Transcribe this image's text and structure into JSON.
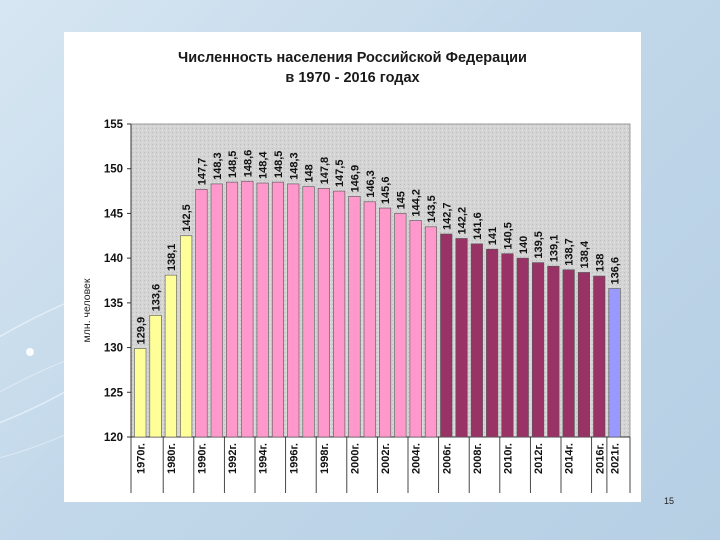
{
  "slide": {
    "page_number": "15"
  },
  "chart_data": {
    "type": "bar",
    "title_line1": "Численность населения Российской Федерации",
    "title_line2": "в 1970 - 2016 годах",
    "ylabel": "млн. человек",
    "ylim": [
      120,
      155
    ],
    "yticks": [
      "120",
      "125",
      "130",
      "135",
      "140",
      "145",
      "150",
      "155"
    ],
    "grid": false,
    "bars": [
      {
        "label": "129,9",
        "value": 129.9,
        "color": "#ffff99"
      },
      {
        "label": "133,6",
        "value": 133.6,
        "color": "#ffff99"
      },
      {
        "label": "138,1",
        "value": 138.1,
        "color": "#ffff99"
      },
      {
        "label": "142,5",
        "value": 142.5,
        "color": "#ffff99"
      },
      {
        "label": "147,7",
        "value": 147.7,
        "color": "#ff99cc"
      },
      {
        "label": "148,3",
        "value": 148.3,
        "color": "#ff99cc"
      },
      {
        "label": "148,5",
        "value": 148.5,
        "color": "#ff99cc"
      },
      {
        "label": "148,6",
        "value": 148.6,
        "color": "#ff99cc"
      },
      {
        "label": "148,4",
        "value": 148.4,
        "color": "#ff99cc"
      },
      {
        "label": "148,5",
        "value": 148.5,
        "color": "#ff99cc"
      },
      {
        "label": "148,3",
        "value": 148.3,
        "color": "#ff99cc"
      },
      {
        "label": "148",
        "value": 148.0,
        "color": "#ff99cc"
      },
      {
        "label": "147,8",
        "value": 147.8,
        "color": "#ff99cc"
      },
      {
        "label": "147,5",
        "value": 147.5,
        "color": "#ff99cc"
      },
      {
        "label": "146,9",
        "value": 146.9,
        "color": "#ff99cc"
      },
      {
        "label": "146,3",
        "value": 146.3,
        "color": "#ff99cc"
      },
      {
        "label": "145,6",
        "value": 145.6,
        "color": "#ff99cc"
      },
      {
        "label": "145",
        "value": 145.0,
        "color": "#ff99cc"
      },
      {
        "label": "144,2",
        "value": 144.2,
        "color": "#ff99cc"
      },
      {
        "label": "143,5",
        "value": 143.5,
        "color": "#ff99cc"
      },
      {
        "label": "142,7",
        "value": 142.7,
        "color": "#993366"
      },
      {
        "label": "142,2",
        "value": 142.2,
        "color": "#993366"
      },
      {
        "label": "141,6",
        "value": 141.6,
        "color": "#993366"
      },
      {
        "label": "141",
        "value": 141.0,
        "color": "#993366"
      },
      {
        "label": "140,5",
        "value": 140.5,
        "color": "#993366"
      },
      {
        "label": "140",
        "value": 140.0,
        "color": "#993366"
      },
      {
        "label": "139,5",
        "value": 139.5,
        "color": "#993366"
      },
      {
        "label": "139,1",
        "value": 139.1,
        "color": "#993366"
      },
      {
        "label": "138,7",
        "value": 138.7,
        "color": "#993366"
      },
      {
        "label": "138,4",
        "value": 138.4,
        "color": "#993366"
      },
      {
        "label": "138",
        "value": 138.0,
        "color": "#993366"
      },
      {
        "label": "136,6",
        "value": 136.6,
        "color": "#9999ff"
      }
    ],
    "category_labels": [
      {
        "text": "1970г.",
        "bar": 0
      },
      {
        "text": "1980г.",
        "bar": 2
      },
      {
        "text": "1990г.",
        "bar": 4
      },
      {
        "text": "1992г.",
        "bar": 6
      },
      {
        "text": "1994г.",
        "bar": 8
      },
      {
        "text": "1996г.",
        "bar": 10
      },
      {
        "text": "1998г.",
        "bar": 12
      },
      {
        "text": "2000г.",
        "bar": 14
      },
      {
        "text": "2002г.",
        "bar": 16
      },
      {
        "text": "2004г.",
        "bar": 18
      },
      {
        "text": "2006г.",
        "bar": 20
      },
      {
        "text": "2008г.",
        "bar": 22
      },
      {
        "text": "2010г.",
        "bar": 24
      },
      {
        "text": "2012г.",
        "bar": 26
      },
      {
        "text": "2014г.",
        "bar": 28
      },
      {
        "text": "2016г.",
        "bar": 30
      },
      {
        "text": "2021г.",
        "bar": 31
      }
    ],
    "group_separators_after_bar": [
      1,
      3,
      5,
      7,
      9,
      11,
      13,
      15,
      17,
      19,
      21,
      23,
      25,
      27,
      29,
      30
    ]
  }
}
